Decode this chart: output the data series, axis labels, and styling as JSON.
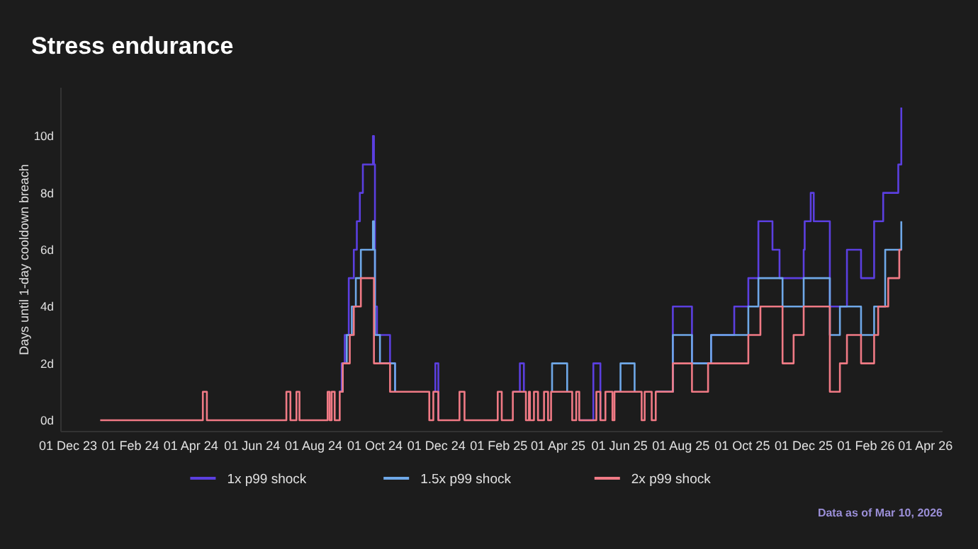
{
  "chart_data": {
    "type": "step",
    "title": "Stress endurance",
    "ylabel": "Days until 1-day cooldown breach",
    "annotations": [
      "Data as of Mar 10, 2026"
    ],
    "xlim": [
      "2023-11-24",
      "2026-04-18"
    ],
    "xticks": [
      {
        "value": "2023-12-01",
        "label": "01 Dec 23"
      },
      {
        "value": "2024-02-01",
        "label": "01 Feb 24"
      },
      {
        "value": "2024-04-01",
        "label": "01 Apr 24"
      },
      {
        "value": "2024-06-01",
        "label": "01 Jun 24"
      },
      {
        "value": "2024-08-01",
        "label": "01 Aug 24"
      },
      {
        "value": "2024-10-01",
        "label": "01 Oct 24"
      },
      {
        "value": "2024-12-01",
        "label": "01 Dec 24"
      },
      {
        "value": "2025-02-01",
        "label": "01 Feb 25"
      },
      {
        "value": "2025-04-01",
        "label": "01 Apr 25"
      },
      {
        "value": "2025-06-01",
        "label": "01 Jun 25"
      },
      {
        "value": "2025-08-01",
        "label": "01 Aug 25"
      },
      {
        "value": "2025-10-01",
        "label": "01 Oct 25"
      },
      {
        "value": "2025-12-01",
        "label": "01 Dec 25"
      },
      {
        "value": "2026-02-01",
        "label": "01 Feb 26"
      },
      {
        "value": "2026-04-01",
        "label": "01 Apr 26"
      }
    ],
    "ylim": [
      -0.4,
      11.7
    ],
    "yticks": [
      {
        "value": 0,
        "label": "0d"
      },
      {
        "value": 2,
        "label": "2d"
      },
      {
        "value": 4,
        "label": "4d"
      },
      {
        "value": 6,
        "label": "6d"
      },
      {
        "value": 8,
        "label": "8d"
      },
      {
        "value": 10,
        "label": "10d"
      }
    ],
    "grid": false,
    "legend": "bottom",
    "series": [
      {
        "name": "1x p99 shock",
        "color": "#5b3fe0",
        "x": [
          "2024-08-26",
          "2024-08-29",
          "2024-09-01",
          "2024-09-05",
          "2024-09-10",
          "2024-09-13",
          "2024-09-16",
          "2024-09-19",
          "2024-09-29",
          "2024-09-30",
          "2024-10-01",
          "2024-10-03",
          "2024-10-16",
          "2024-10-21",
          "2024-11-24",
          "2024-11-28",
          "2024-11-30",
          "2024-12-03",
          "2024-12-24",
          "2025-02-15",
          "2025-02-22",
          "2025-02-26",
          "2025-02-28",
          "2025-04-22",
          "2025-05-06",
          "2025-05-13",
          "2025-05-18",
          "2025-07-07",
          "2025-07-24",
          "2025-08-12",
          "2025-08-31",
          "2025-09-23",
          "2025-10-07",
          "2025-10-17",
          "2025-10-31",
          "2025-11-07",
          "2025-12-01",
          "2025-12-02",
          "2025-12-08",
          "2025-12-11",
          "2025-12-27",
          "2026-01-13",
          "2026-01-27",
          "2026-02-09",
          "2026-02-18",
          "2026-03-05",
          "2026-03-08"
        ],
        "values": [
          1,
          2,
          3,
          5,
          6,
          7,
          8,
          9,
          10,
          9,
          4,
          3,
          2,
          1,
          null,
          1,
          2,
          0,
          null,
          1,
          2,
          1,
          null,
          0,
          2,
          0,
          null,
          1,
          4,
          2,
          3,
          4,
          5,
          7,
          6,
          5,
          6,
          7,
          8,
          7,
          4,
          6,
          5,
          7,
          8,
          9,
          11
        ]
      },
      {
        "name": "1.5x p99 shock",
        "color": "#6fa8e8",
        "x": [
          "2024-08-27",
          "2024-08-30",
          "2024-09-03",
          "2024-09-08",
          "2024-09-12",
          "2024-09-17",
          "2024-09-29",
          "2024-09-30",
          "2024-10-01",
          "2024-10-06",
          "2024-10-21",
          "2024-11-24",
          "2025-03-25",
          "2025-03-26",
          "2025-04-10",
          "2025-04-15",
          "2025-05-27",
          "2025-06-02",
          "2025-06-16",
          "2025-06-23",
          "2025-07-07",
          "2025-07-24",
          "2025-08-12",
          "2025-08-31",
          "2025-10-07",
          "2025-10-17",
          "2025-11-10",
          "2025-12-01",
          "2025-12-27",
          "2026-01-06",
          "2026-01-27",
          "2026-02-09",
          "2026-02-20",
          "2026-03-08"
        ],
        "values": [
          1,
          2,
          3,
          4,
          5,
          6,
          7,
          6,
          3,
          2,
          1,
          null,
          1,
          2,
          1,
          null,
          1,
          2,
          1,
          null,
          1,
          3,
          2,
          3,
          4,
          5,
          4,
          5,
          3,
          4,
          3,
          4,
          6,
          7
        ]
      },
      {
        "name": "2x p99 shock",
        "color": "#f07a85",
        "x": [
          "2024-01-02",
          "2024-04-13",
          "2024-04-17",
          "2024-07-05",
          "2024-07-09",
          "2024-07-15",
          "2024-07-18",
          "2024-08-15",
          "2024-08-17",
          "2024-08-19",
          "2024-08-22",
          "2024-08-27",
          "2024-08-30",
          "2024-09-06",
          "2024-09-10",
          "2024-09-17",
          "2024-09-30",
          "2024-10-16",
          "2024-11-24",
          "2024-11-28",
          "2024-12-03",
          "2024-12-24",
          "2024-12-29",
          "2025-01-31",
          "2025-02-04",
          "2025-02-15",
          "2025-02-28",
          "2025-03-03",
          "2025-03-04",
          "2025-03-08",
          "2025-03-12",
          "2025-03-18",
          "2025-03-22",
          "2025-03-25",
          "2025-04-15",
          "2025-04-19",
          "2025-04-22",
          "2025-05-09",
          "2025-05-13",
          "2025-05-18",
          "2025-05-25",
          "2025-05-27",
          "2025-06-23",
          "2025-06-26",
          "2025-07-03",
          "2025-07-07",
          "2025-07-24",
          "2025-08-12",
          "2025-08-28",
          "2025-10-07",
          "2025-10-19",
          "2025-11-10",
          "2025-11-21",
          "2025-12-01",
          "2025-12-27",
          "2026-01-06",
          "2026-01-13",
          "2026-01-27",
          "2026-02-09",
          "2026-02-13",
          "2026-02-23",
          "2026-03-06",
          "2026-03-08"
        ],
        "values": [
          0,
          1,
          0,
          1,
          0,
          1,
          0,
          1,
          0,
          1,
          0,
          1,
          2,
          3,
          4,
          5,
          2,
          1,
          0,
          1,
          0,
          1,
          0,
          1,
          0,
          1,
          0,
          1,
          0,
          1,
          0,
          1,
          0,
          1,
          0,
          1,
          0,
          1,
          0,
          1,
          0,
          1,
          0,
          1,
          0,
          1,
          2,
          1,
          2,
          3,
          4,
          2,
          3,
          4,
          1,
          2,
          3,
          2,
          3,
          4,
          5,
          6,
          6
        ]
      }
    ]
  }
}
